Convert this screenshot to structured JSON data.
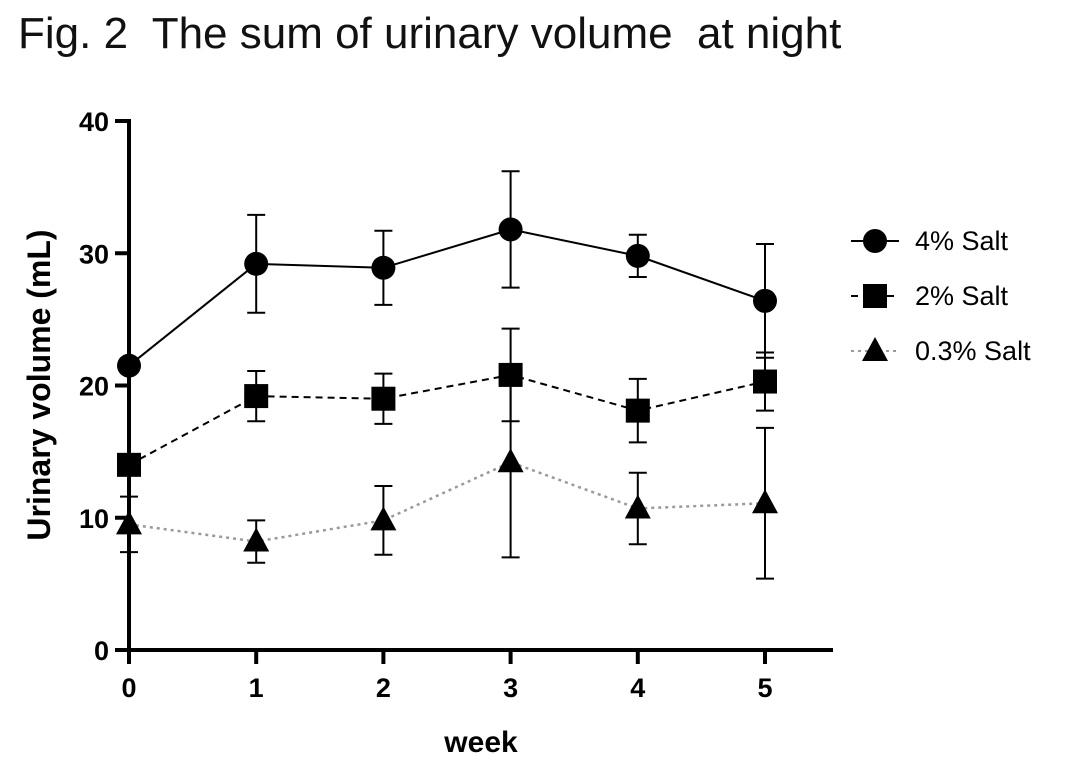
{
  "figure_title": "Fig. 2  The sum of urinary volume  at night",
  "chart_data": {
    "type": "line",
    "title": "The sum of urinary volume at night",
    "xlabel": "week",
    "ylabel": "Urinary volume (mL)",
    "x": [
      0,
      1,
      2,
      3,
      4,
      5
    ],
    "xticks": [
      "0",
      "1",
      "2",
      "3",
      "4",
      "5"
    ],
    "yticks": [
      "0",
      "10",
      "20",
      "30",
      "40"
    ],
    "xlim": [
      0,
      5.5
    ],
    "ylim": [
      0,
      40
    ],
    "grid": false,
    "legend_position": "right",
    "series": [
      {
        "name": "4% Salt",
        "marker": "circle",
        "line_style": "solid",
        "color": "#000000",
        "values": [
          21.5,
          29.2,
          28.9,
          31.8,
          29.8,
          26.4
        ],
        "error": [
          null,
          3.7,
          2.8,
          4.4,
          1.6,
          4.3
        ]
      },
      {
        "name": "2% Salt",
        "marker": "square",
        "line_style": "dashed",
        "color": "#000000",
        "values": [
          14.0,
          19.2,
          19.0,
          20.8,
          18.1,
          20.3
        ],
        "error": [
          null,
          1.9,
          1.9,
          3.5,
          2.4,
          2.2
        ]
      },
      {
        "name": "0.3% Salt",
        "marker": "triangle",
        "line_style": "dotted",
        "color": "#000000",
        "line_color": "#9a9a9a",
        "values": [
          9.5,
          8.2,
          9.8,
          14.2,
          10.7,
          11.1
        ],
        "error": [
          2.1,
          1.6,
          2.6,
          7.2,
          2.7,
          5.7
        ]
      }
    ]
  }
}
